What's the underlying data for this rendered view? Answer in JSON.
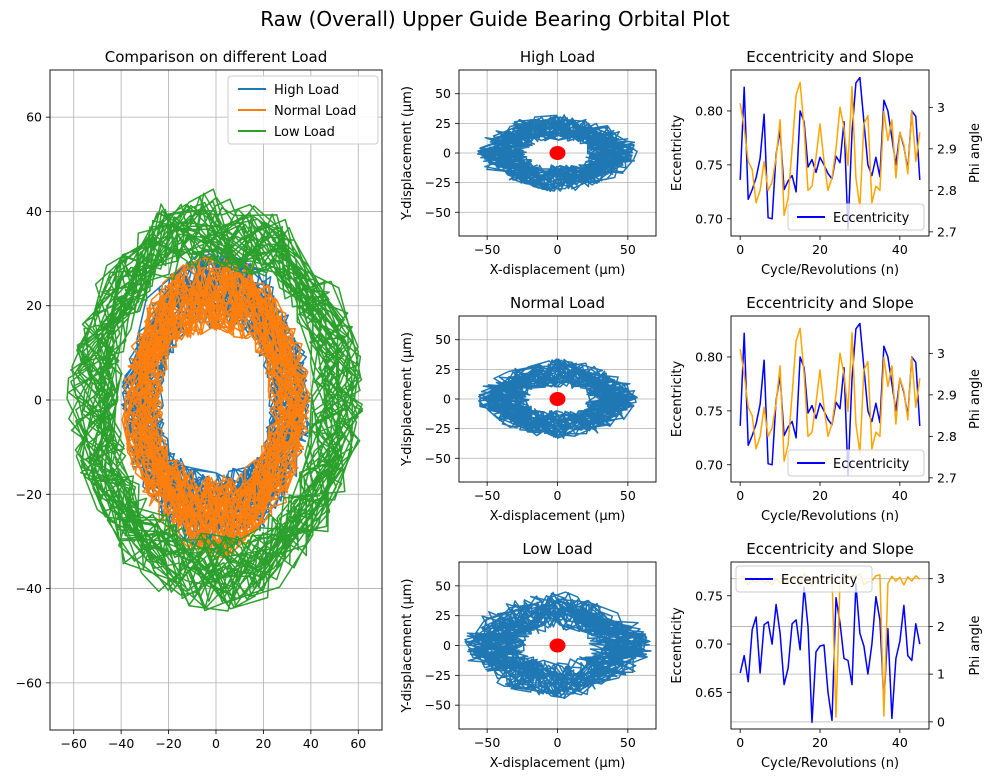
{
  "figure": {
    "title": "Raw (Overall) Upper Guide Bearing Orbital Plot"
  },
  "chart_data": [
    {
      "id": "comparison",
      "type": "line",
      "title": "Comparison on different Load",
      "xlabel": "",
      "ylabel": "",
      "xlim": [
        -70,
        70
      ],
      "ylim": [
        -70,
        70
      ],
      "xticks": [
        -60,
        -40,
        -20,
        0,
        20,
        40,
        60
      ],
      "yticks": [
        -60,
        -40,
        -20,
        0,
        20,
        40,
        60
      ],
      "grid": true,
      "legend": "top-right",
      "series": [
        {
          "name": "High Load",
          "color": "#1f77b4",
          "center": [
            0,
            0
          ],
          "r_inner": [
            15,
            22
          ],
          "r_outer": [
            33,
            40
          ]
        },
        {
          "name": "Normal Load",
          "color": "#ff7f0e",
          "center": [
            0,
            -1
          ],
          "r_inner": [
            15,
            22
          ],
          "r_outer": [
            33,
            40
          ]
        },
        {
          "name": "Low Load",
          "color": "#2ca02c",
          "center": [
            0,
            0
          ],
          "r_inner": [
            28,
            40
          ],
          "r_outer": [
            45,
            63
          ]
        }
      ]
    },
    {
      "id": "orbit-high",
      "type": "line",
      "title": "High Load",
      "xlabel": "X-displacement (µm)",
      "ylabel": "Y-displacement (µm)",
      "xlim": [
        -70,
        70
      ],
      "ylim": [
        -70,
        70
      ],
      "xticks": [
        -50,
        0,
        50
      ],
      "yticks": [
        -50,
        -25,
        0,
        25,
        50
      ],
      "grid": true,
      "series": [
        {
          "color": "#1f77b4",
          "center": [
            0,
            0
          ],
          "r_inner": [
            10,
            20
          ],
          "r_outer": [
            33,
            57
          ]
        }
      ],
      "marker": {
        "color": "#ff0000",
        "x": 0,
        "y": 0
      }
    },
    {
      "id": "orbit-normal",
      "type": "line",
      "title": "Normal Load",
      "xlabel": "X-displacement (µm)",
      "ylabel": "Y-displacement (µm)",
      "xlim": [
        -70,
        70
      ],
      "ylim": [
        -70,
        70
      ],
      "xticks": [
        -50,
        0,
        50
      ],
      "yticks": [
        -50,
        -25,
        0,
        25,
        50
      ],
      "grid": true,
      "series": [
        {
          "color": "#1f77b4",
          "center": [
            0,
            0
          ],
          "r_inner": [
            10,
            20
          ],
          "r_outer": [
            34,
            57
          ]
        }
      ],
      "marker": {
        "color": "#ff0000",
        "x": 0,
        "y": 0
      }
    },
    {
      "id": "orbit-low",
      "type": "line",
      "title": "Low Load",
      "xlabel": "X-displacement (µm)",
      "ylabel": "Y-displacement (µm)",
      "xlim": [
        -70,
        70
      ],
      "ylim": [
        -70,
        70
      ],
      "xticks": [
        -50,
        0,
        50
      ],
      "yticks": [
        -50,
        -25,
        0,
        25,
        50
      ],
      "grid": true,
      "series": [
        {
          "color": "#1f77b4",
          "center": [
            0,
            0
          ],
          "r_inner": [
            12,
            22
          ],
          "r_outer": [
            45,
            67
          ]
        }
      ],
      "marker": {
        "color": "#ff0000",
        "x": 0,
        "y": 0
      }
    },
    {
      "id": "ecc-high",
      "type": "line",
      "title": "Eccentricity and Slope",
      "xlabel": "Cycle/Revolutions (n)",
      "ylabel": "Eccentricity",
      "ylabel_right": "Phi angle",
      "xlim": [
        -2.3,
        47.3
      ],
      "ylim": [
        0.684,
        0.838
      ],
      "ylim_right": [
        2.69,
        3.09
      ],
      "xticks": [
        0,
        20,
        40
      ],
      "yticks": [
        0.7,
        0.75,
        0.8
      ],
      "yticks_right": [
        2.7,
        2.8,
        2.9,
        3.0
      ],
      "legend": "lower-right",
      "x": [
        0,
        1,
        2,
        3,
        4,
        5,
        6,
        7,
        8,
        9,
        10,
        11,
        12,
        13,
        14,
        15,
        16,
        17,
        18,
        19,
        20,
        21,
        22,
        23,
        24,
        25,
        26,
        27,
        28,
        29,
        30,
        31,
        32,
        33,
        34,
        35,
        36,
        37,
        38,
        39,
        40,
        41,
        42,
        43,
        44,
        45
      ],
      "series": [
        {
          "name": "Eccentricity",
          "axis": "left",
          "color": "#0000ff",
          "values": [
            0.736,
            0.822,
            0.718,
            0.727,
            0.738,
            0.756,
            0.797,
            0.701,
            0.7,
            0.76,
            0.782,
            0.727,
            0.735,
            0.74,
            0.725,
            0.8,
            0.79,
            0.748,
            0.755,
            0.743,
            0.757,
            0.75,
            0.742,
            0.737,
            0.758,
            0.752,
            0.79,
            0.69,
            0.78,
            0.826,
            0.831,
            0.79,
            0.75,
            0.74,
            0.757,
            0.739,
            0.81,
            0.8,
            0.775,
            0.75,
            0.78,
            0.767,
            0.745,
            0.8,
            0.795,
            0.736
          ]
        },
        {
          "axis": "right",
          "color": "#ffa500",
          "values": [
            3.01,
            2.95,
            2.87,
            2.85,
            2.77,
            2.8,
            2.87,
            2.8,
            2.82,
            2.88,
            2.97,
            2.74,
            2.78,
            2.9,
            3.03,
            3.06,
            2.95,
            2.8,
            2.81,
            2.88,
            2.96,
            2.87,
            2.8,
            2.83,
            2.9,
            3.0,
            2.95,
            2.86,
            3.05,
            2.83,
            2.76,
            2.96,
            2.98,
            2.77,
            2.81,
            2.8,
            2.99,
            2.92,
            2.97,
            2.83,
            2.94,
            2.91,
            2.84,
            2.99,
            2.87,
            2.94
          ]
        }
      ]
    },
    {
      "id": "ecc-normal",
      "type": "line",
      "title": "Eccentricity and Slope",
      "xlabel": "Cycle/Revolutions (n)",
      "ylabel": "Eccentricity",
      "ylabel_right": "Phi angle",
      "xlim": [
        -2.3,
        47.3
      ],
      "ylim": [
        0.684,
        0.838
      ],
      "ylim_right": [
        2.69,
        3.09
      ],
      "xticks": [
        0,
        20,
        40
      ],
      "yticks": [
        0.7,
        0.75,
        0.8
      ],
      "yticks_right": [
        2.7,
        2.8,
        2.9,
        3.0
      ],
      "legend": "lower-right",
      "x": [
        0,
        1,
        2,
        3,
        4,
        5,
        6,
        7,
        8,
        9,
        10,
        11,
        12,
        13,
        14,
        15,
        16,
        17,
        18,
        19,
        20,
        21,
        22,
        23,
        24,
        25,
        26,
        27,
        28,
        29,
        30,
        31,
        32,
        33,
        34,
        35,
        36,
        37,
        38,
        39,
        40,
        41,
        42,
        43,
        44,
        45
      ],
      "series": [
        {
          "name": "Eccentricity",
          "axis": "left",
          "color": "#0000ff",
          "values": [
            0.736,
            0.822,
            0.718,
            0.727,
            0.738,
            0.756,
            0.797,
            0.701,
            0.7,
            0.76,
            0.782,
            0.727,
            0.735,
            0.74,
            0.725,
            0.8,
            0.79,
            0.748,
            0.755,
            0.743,
            0.757,
            0.75,
            0.742,
            0.737,
            0.758,
            0.752,
            0.79,
            0.69,
            0.78,
            0.826,
            0.831,
            0.79,
            0.75,
            0.74,
            0.757,
            0.739,
            0.81,
            0.8,
            0.775,
            0.75,
            0.78,
            0.767,
            0.745,
            0.8,
            0.795,
            0.736
          ]
        },
        {
          "axis": "right",
          "color": "#ffa500",
          "values": [
            3.01,
            2.95,
            2.87,
            2.85,
            2.77,
            2.8,
            2.87,
            2.8,
            2.82,
            2.88,
            2.97,
            2.74,
            2.78,
            2.9,
            3.03,
            3.06,
            2.95,
            2.8,
            2.81,
            2.88,
            2.96,
            2.87,
            2.8,
            2.83,
            2.9,
            3.0,
            2.95,
            2.86,
            3.05,
            2.83,
            2.76,
            2.96,
            2.98,
            2.77,
            2.81,
            2.8,
            2.99,
            2.92,
            2.97,
            2.83,
            2.94,
            2.91,
            2.84,
            2.99,
            2.87,
            2.94
          ]
        }
      ]
    },
    {
      "id": "ecc-low",
      "type": "line",
      "title": "Eccentricity and Slope",
      "xlabel": "Cycle/Revolutions (n)",
      "ylabel": "Eccentricity",
      "ylabel_right": "Phi angle",
      "xlim": [
        -2.3,
        47.3
      ],
      "ylim": [
        0.612,
        0.785
      ],
      "ylim_right": [
        -0.15,
        3.35
      ],
      "xticks": [
        0,
        20,
        40
      ],
      "yticks": [
        0.65,
        0.7,
        0.75
      ],
      "yticks_right": [
        0,
        1,
        2,
        3
      ],
      "legend": "top-left",
      "x": [
        0,
        1,
        2,
        3,
        4,
        5,
        6,
        7,
        8,
        9,
        10,
        11,
        12,
        13,
        14,
        15,
        16,
        17,
        18,
        19,
        20,
        21,
        22,
        23,
        24,
        25,
        26,
        27,
        28,
        29,
        30,
        31,
        32,
        33,
        34,
        35,
        36,
        37,
        38,
        39,
        40,
        41,
        42,
        43,
        44,
        45
      ],
      "series": [
        {
          "name": "Eccentricity",
          "axis": "left",
          "color": "#0000ff",
          "values": [
            0.67,
            0.688,
            0.661,
            0.715,
            0.728,
            0.67,
            0.72,
            0.723,
            0.7,
            0.741,
            0.711,
            0.658,
            0.675,
            0.721,
            0.725,
            0.694,
            0.759,
            0.718,
            0.619,
            0.692,
            0.698,
            0.699,
            0.65,
            0.621,
            0.748,
            0.722,
            0.685,
            0.683,
            0.658,
            0.762,
            0.711,
            0.698,
            0.669,
            0.7,
            0.749,
            0.725,
            0.64,
            0.716,
            0.623,
            0.685,
            0.703,
            0.74,
            0.688,
            0.683,
            0.721,
            0.7
          ]
        },
        {
          "axis": "right",
          "color": "#ffa500",
          "values": [
            3.05,
            3.04,
            2.87,
            2.97,
            2.92,
            3.0,
            2.91,
            2.95,
            2.87,
            3.0,
            2.91,
            3.02,
            2.93,
            2.99,
            3.02,
            2.86,
            3.11,
            2.97,
            2.85,
            3.04,
            2.91,
            2.92,
            3.0,
            3.05,
            0.1,
            2.95,
            2.88,
            3.02,
            3.06,
            3.05,
            3.1,
            2.87,
            2.93,
            2.95,
            3.06,
            3.08,
            0.12,
            2.9,
            3.05,
            2.95,
            3.03,
            2.87,
            3.04,
            2.95,
            3.06,
            2.99
          ]
        }
      ]
    }
  ]
}
